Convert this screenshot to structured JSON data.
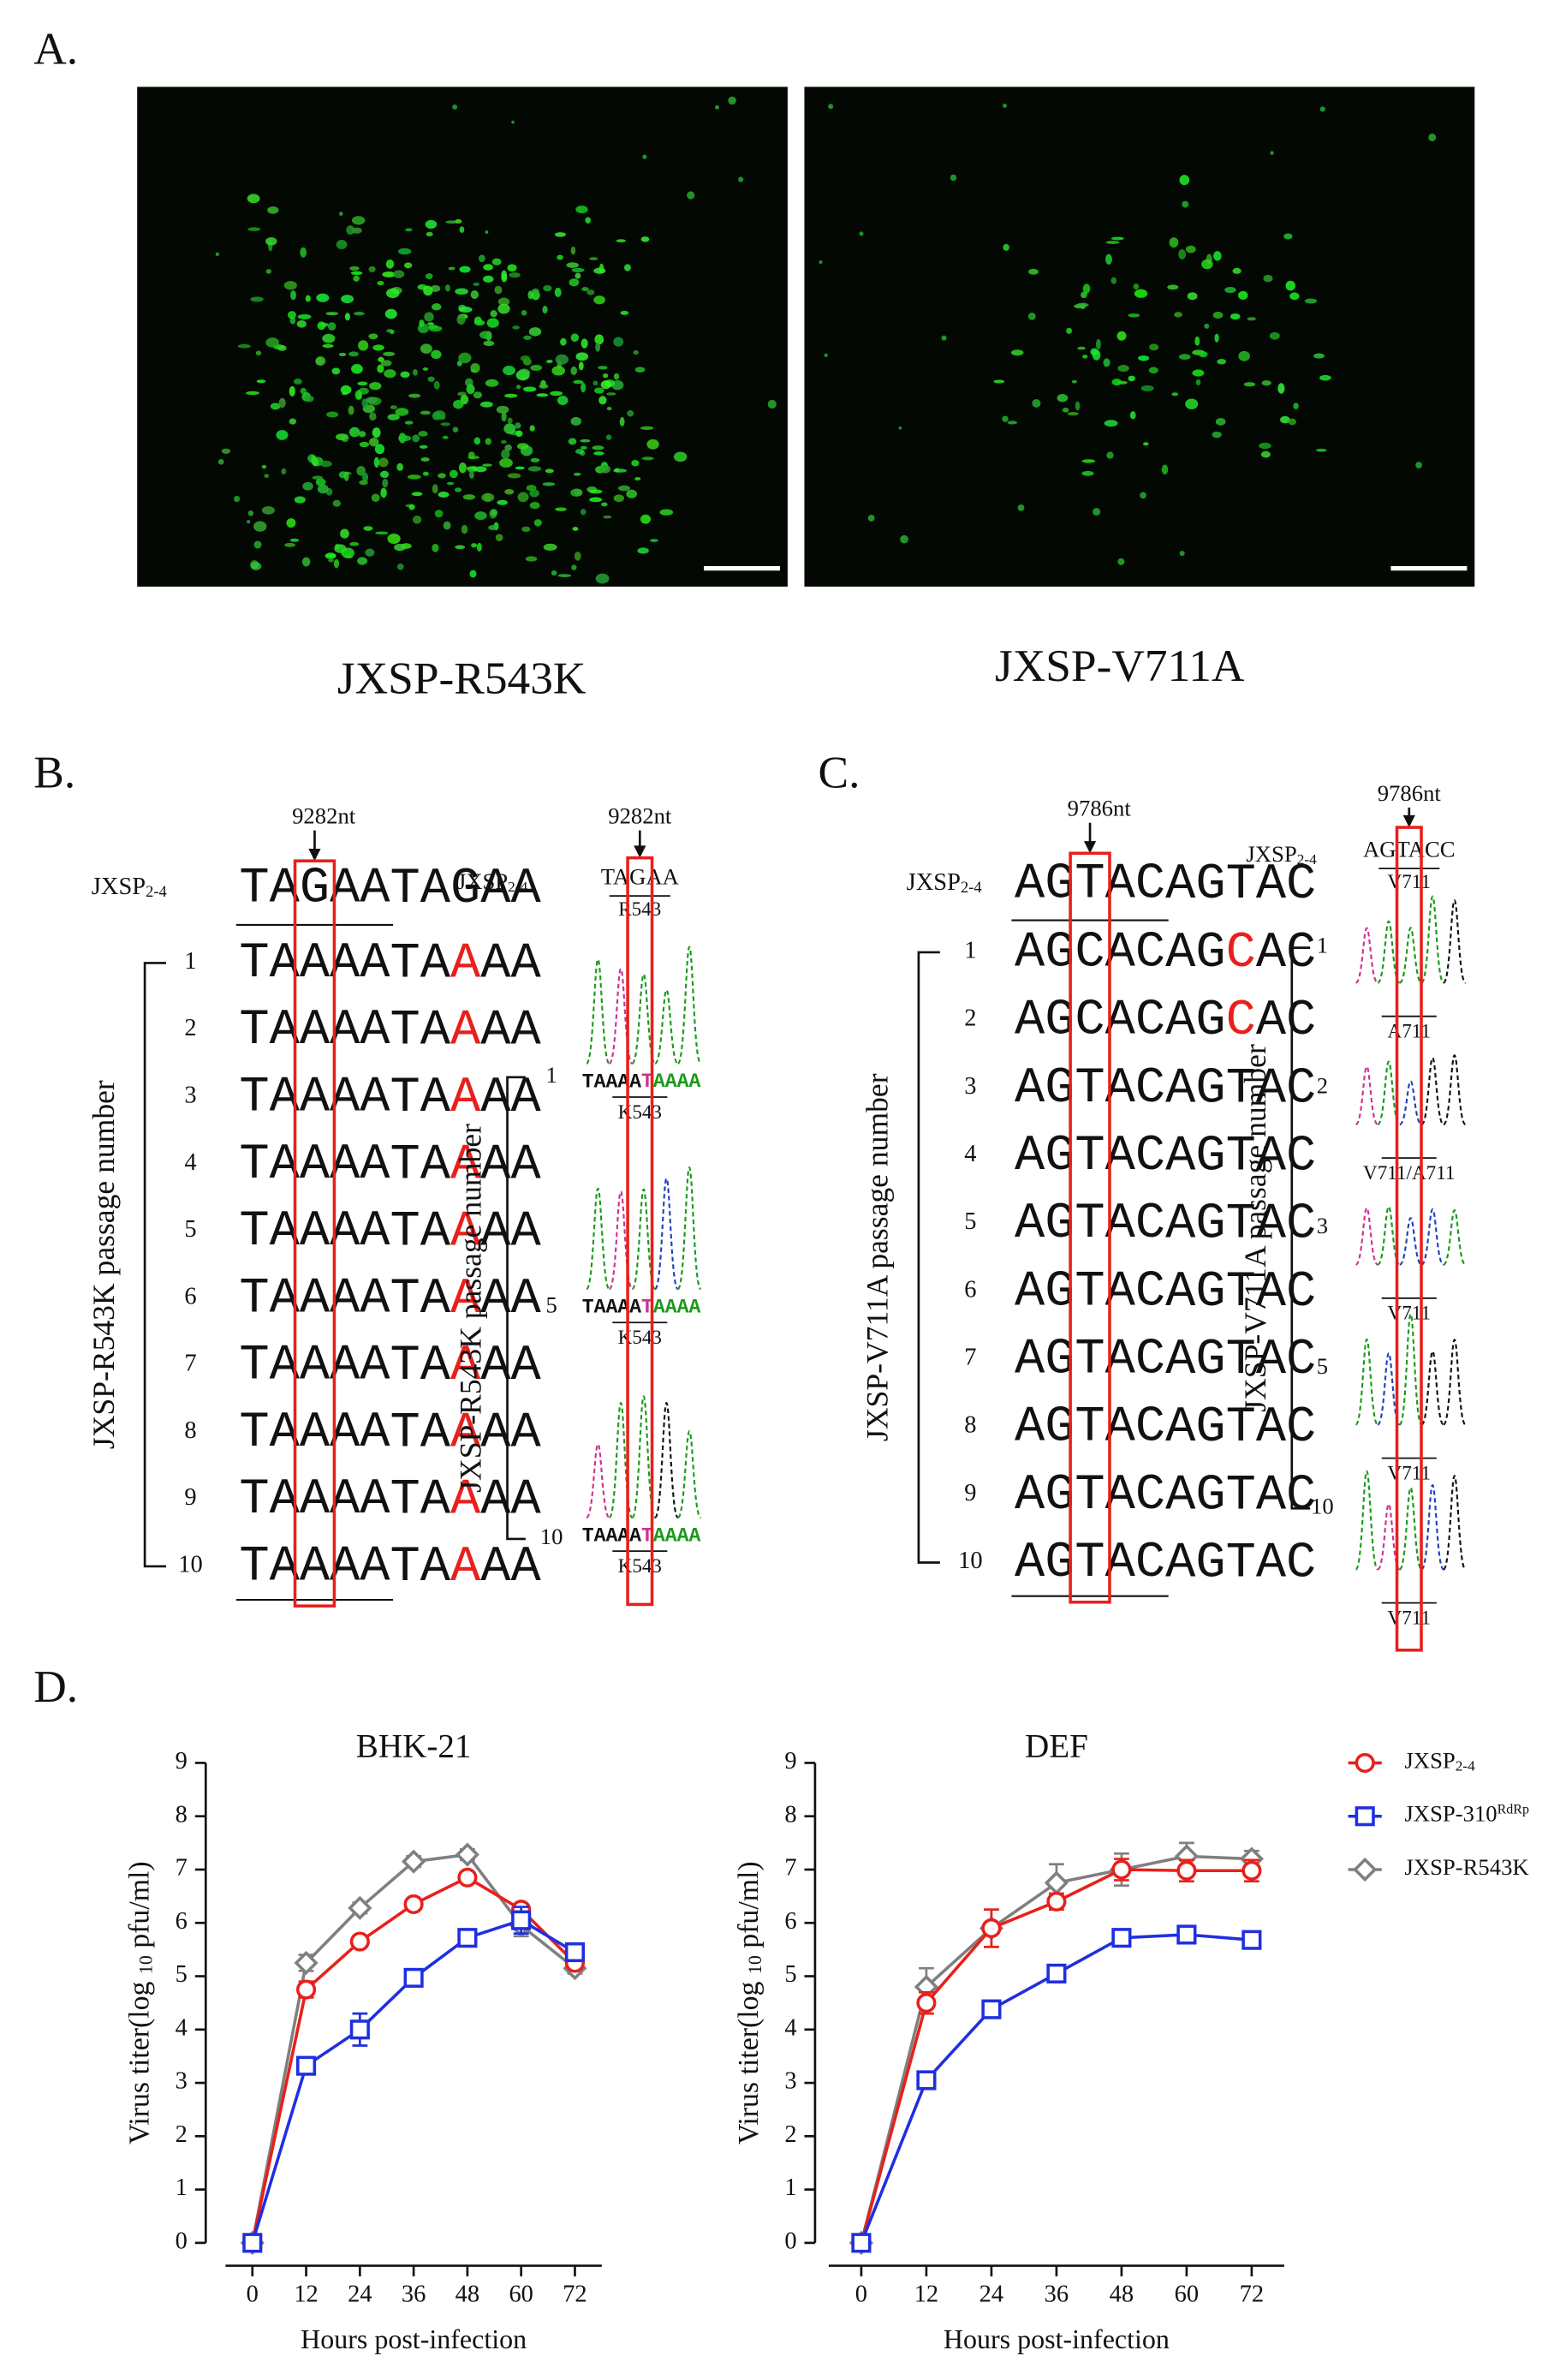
{
  "panel_labels": [
    "A.",
    "B.",
    "C.",
    "D."
  ],
  "panel_a": {
    "images": [
      {
        "label": "JXSP-R543K"
      },
      {
        "label": "JXSP-V711A"
      }
    ]
  },
  "panel_b": {
    "alignment": {
      "site": "9282nt",
      "reference": {
        "name": "JXSP",
        "name_sub": "2-4",
        "sequence": "TAGAA"
      },
      "rows": [
        {
          "number": "1",
          "sequence": "TAAAA"
        },
        {
          "number": "2",
          "sequence": "TAAAA"
        },
        {
          "number": "3",
          "sequence": "TAAAA"
        },
        {
          "number": "4",
          "sequence": "TAAAA"
        },
        {
          "number": "5",
          "sequence": "TAAAA"
        },
        {
          "number": "6",
          "sequence": "TAAAA"
        },
        {
          "number": "7",
          "sequence": "TAAAA"
        },
        {
          "number": "8",
          "sequence": "TAAAA"
        },
        {
          "number": "9",
          "sequence": "TAAAA"
        },
        {
          "number": "10",
          "sequence": "TAAAA"
        }
      ],
      "axis_label": "JXSP-R543K passage number"
    },
    "chromatogram": {
      "site": "9282nt",
      "reference": {
        "name": "JXSP",
        "name_sub": "2-4",
        "sequence": "TAGAA",
        "residue": "R543"
      },
      "traces": [
        {
          "number": "1",
          "sequence": "TAAAA",
          "residue": "K543"
        },
        {
          "number": "5",
          "sequence": "TAAAA",
          "residue": "K543"
        },
        {
          "number": "10",
          "sequence": "TAAAA",
          "residue": "K543"
        }
      ],
      "axis_label": "JXSP-R543K passage number"
    }
  },
  "panel_c": {
    "alignment": {
      "site": "9786nt",
      "reference": {
        "name": "JXSP",
        "name_sub": "2-4",
        "sequence": "AGTAC"
      },
      "rows": [
        {
          "number": "1",
          "sequence": "AGCAC"
        },
        {
          "number": "2",
          "sequence": "AGCAC"
        },
        {
          "number": "3",
          "sequence": "AGTAC"
        },
        {
          "number": "4",
          "sequence": "AGTAC"
        },
        {
          "number": "5",
          "sequence": "AGTAC"
        },
        {
          "number": "6",
          "sequence": "AGTAC"
        },
        {
          "number": "7",
          "sequence": "AGTAC"
        },
        {
          "number": "8",
          "sequence": "AGTAC"
        },
        {
          "number": "9",
          "sequence": "AGTAC"
        },
        {
          "number": "10",
          "sequence": "AGTAC"
        }
      ],
      "axis_label": "JXSP-V711A passage number"
    },
    "chromatogram": {
      "site": "9786nt",
      "reference": {
        "name": "JXSP",
        "name_sub": "2-4",
        "sequence": "AGTACC",
        "residue": "V711"
      },
      "traces": [
        {
          "number": "1",
          "residue": "A711"
        },
        {
          "number": "2",
          "residue": "V711/A711"
        },
        {
          "number": "3",
          "residue": "V711"
        },
        {
          "number": "5",
          "residue": "V711"
        },
        {
          "number": "10",
          "residue": "V711"
        }
      ],
      "axis_label": "JXSP-V711A passage number"
    }
  },
  "chart_data": [
    {
      "type": "line",
      "title": "BHK-21",
      "x_label": "Hours post-infection",
      "y_label": {
        "before": "Virus titer(log ",
        "sub": "10",
        "after": " pfu/ml)"
      },
      "x": [
        0,
        12,
        24,
        36,
        48,
        60,
        72
      ],
      "xlim": [
        -6,
        78
      ],
      "xticks": [
        0,
        12,
        24,
        36,
        48,
        60,
        72
      ],
      "ylim": [
        0,
        9
      ],
      "yticks": [
        0,
        1,
        2,
        3,
        4,
        5,
        6,
        7,
        8,
        9
      ],
      "legend": "right",
      "series": [
        {
          "name": "JXSP",
          "name_sub": "2-4",
          "color": "#e8201c",
          "marker": "circle",
          "values": [
            0,
            4.75,
            5.65,
            6.35,
            6.85,
            6.25,
            5.25
          ],
          "errors": [
            0,
            0.15,
            0.1,
            0.1,
            0.1,
            0.1,
            0.1
          ]
        },
        {
          "name": "JXSP-310",
          "name_sup": "RdRp",
          "color": "#1f2fe0",
          "marker": "square",
          "values": [
            0,
            3.32,
            4.0,
            4.97,
            5.72,
            6.05,
            5.45
          ],
          "errors": [
            0,
            0.1,
            0.3,
            0.1,
            0.1,
            0.25,
            0.1
          ]
        },
        {
          "name": "JXSP-R543K",
          "color": "#7f7f7f",
          "marker": "diamond",
          "values": [
            0,
            5.25,
            6.28,
            7.15,
            7.28,
            5.95,
            5.15
          ],
          "errors": [
            0,
            0.15,
            0.1,
            0.1,
            0.1,
            0.2,
            0.1
          ]
        }
      ]
    },
    {
      "type": "line",
      "title": "DEF",
      "x_label": "Hours post-infection",
      "y_label": {
        "before": "Virus titer(log ",
        "sub": "10",
        "after": " pfu/ml)"
      },
      "x": [
        0,
        12,
        24,
        36,
        48,
        60,
        72
      ],
      "xlim": [
        -6,
        78
      ],
      "xticks": [
        0,
        12,
        24,
        36,
        48,
        60,
        72
      ],
      "ylim": [
        0,
        9
      ],
      "yticks": [
        0,
        1,
        2,
        3,
        4,
        5,
        6,
        7,
        8,
        9
      ],
      "series": [
        {
          "color": "#e8201c",
          "marker": "circle",
          "values": [
            0,
            4.5,
            5.9,
            6.4,
            7.0,
            6.98,
            6.98
          ],
          "errors": [
            0,
            0.2,
            0.35,
            0.15,
            0.2,
            0.2,
            0.2
          ]
        },
        {
          "color": "#1f2fe0",
          "marker": "square",
          "values": [
            0,
            3.05,
            4.38,
            5.05,
            5.72,
            5.78,
            5.68
          ],
          "errors": [
            0,
            0.1,
            0.1,
            0.1,
            0.1,
            0.1,
            0.1
          ]
        },
        {
          "color": "#7f7f7f",
          "marker": "diamond",
          "values": [
            0,
            4.8,
            5.9,
            6.75,
            7.0,
            7.25,
            7.2
          ],
          "errors": [
            0,
            0.35,
            0.35,
            0.35,
            0.3,
            0.25,
            0.15
          ]
        }
      ]
    }
  ]
}
